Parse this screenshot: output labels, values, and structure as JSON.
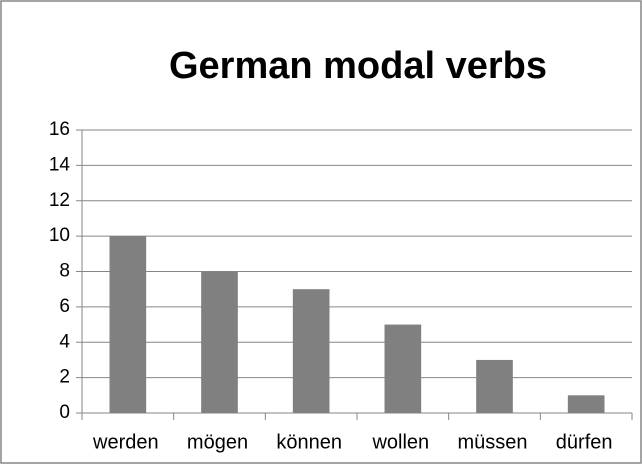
{
  "chart_data": {
    "type": "bar",
    "title": "German modal verbs",
    "categories": [
      "werden",
      "mögen",
      "können",
      "wollen",
      "müssen",
      "dürfen"
    ],
    "values": [
      10,
      8,
      7,
      5,
      3,
      1
    ],
    "color": "#808080",
    "ylim": [
      0,
      16
    ],
    "yticks": [
      0,
      2,
      4,
      6,
      8,
      10,
      12,
      14,
      16
    ],
    "grid": true
  }
}
